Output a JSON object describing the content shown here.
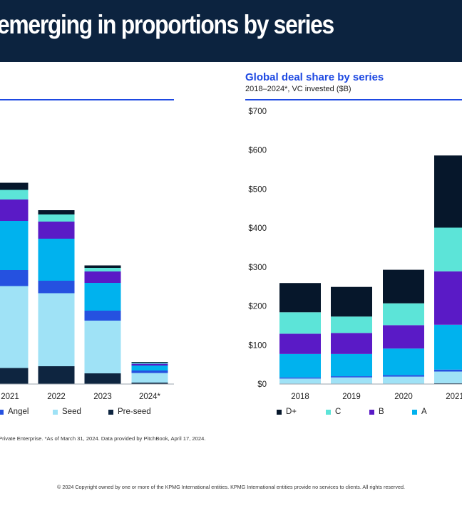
{
  "header": {
    "title": "emerging in proportions by series"
  },
  "right_panel": {
    "title": "Global deal share by series",
    "subtitle": "2018–2024*, VC invested ($B)"
  },
  "colors": {
    "banner": "#0c233f",
    "accent": "#1e49e2",
    "D+": "#06172b",
    "C": "#5ce4d8",
    "B": "#5a1ac6",
    "A": "#00b2ee",
    "Angel": "#2551e0",
    "Seed": "#9fe2f6",
    "Pre-seed": "#0e2540"
  },
  "left_legend": [
    {
      "label": "Angel",
      "color_key": "Angel"
    },
    {
      "label": "Seed",
      "color_key": "Seed"
    },
    {
      "label": "Pre-seed",
      "color_key": "Pre-seed"
    }
  ],
  "right_legend": [
    {
      "label": "D+",
      "color_key": "D+"
    },
    {
      "label": "C",
      "color_key": "C"
    },
    {
      "label": "B",
      "color_key": "B"
    },
    {
      "label": "A",
      "color_key": "A"
    }
  ],
  "footer": {
    "source": "Private Enterprise. *As of March 31, 2024. Data provided by PitchBook, April 17, 2024.",
    "copyright": "© 2024 Copyright owned by one or more of the KPMG International entities. KPMG International entities provide no services to clients. All rights reserved."
  },
  "chart_data": [
    {
      "type": "bar",
      "stacked": true,
      "categories": [
        "2021",
        "2022",
        "2023",
        "2024*"
      ],
      "series": [
        {
          "name": "Pre-seed",
          "values": [
            45,
            50,
            30,
            4
          ]
        },
        {
          "name": "Seed",
          "values": [
            230,
            205,
            148,
            27
          ]
        },
        {
          "name": "Angel",
          "values": [
            45,
            35,
            28,
            7
          ]
        },
        {
          "name": "A",
          "values": [
            138,
            118,
            78,
            14
          ]
        },
        {
          "name": "B",
          "values": [
            60,
            48,
            32,
            5
          ]
        },
        {
          "name": "C",
          "values": [
            27,
            20,
            10,
            3
          ]
        },
        {
          "name": "D+",
          "values": [
            20,
            12,
            7,
            2
          ]
        }
      ],
      "series_order_bottom_to_top": [
        "Pre-seed",
        "Seed",
        "Angel",
        "A",
        "B",
        "C",
        "D+"
      ]
    },
    {
      "type": "bar",
      "stacked": true,
      "title": "Global deal share by series",
      "subtitle": "2018–2024*, VC invested ($B)",
      "categories": [
        "2018",
        "2019",
        "2020",
        "2021"
      ],
      "ylim": [
        0,
        700
      ],
      "yticks": [
        "$0",
        "$100",
        "$200",
        "$300",
        "$400",
        "$500",
        "$600",
        "$700"
      ],
      "series": [
        {
          "name": "Pre-seed",
          "values": [
            1,
            1,
            1,
            2
          ]
        },
        {
          "name": "Seed",
          "values": [
            13,
            16,
            18,
            30
          ]
        },
        {
          "name": "Angel",
          "values": [
            3,
            3,
            4,
            5
          ]
        },
        {
          "name": "A",
          "values": [
            60,
            57,
            68,
            115
          ]
        },
        {
          "name": "B",
          "values": [
            52,
            54,
            60,
            137
          ]
        },
        {
          "name": "C",
          "values": [
            55,
            42,
            56,
            112
          ]
        },
        {
          "name": "D+",
          "values": [
            75,
            76,
            86,
            185
          ]
        }
      ],
      "series_order_bottom_to_top": [
        "Pre-seed",
        "Seed",
        "Angel",
        "A",
        "B",
        "C",
        "D+"
      ]
    }
  ]
}
